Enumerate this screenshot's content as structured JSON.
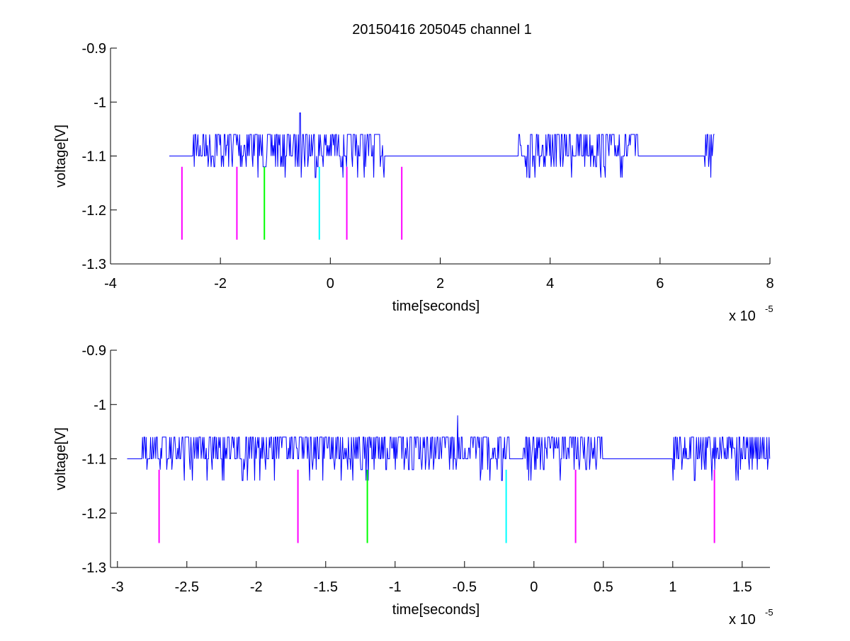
{
  "figure": {
    "title": "20150416 205045 channel 1",
    "background": "#ffffff"
  },
  "chart_data": [
    {
      "type": "line",
      "xlabel": "time[seconds]",
      "ylabel": "voltage[V]",
      "x_multiplier": "x 10",
      "x_multiplier_exp": "-5",
      "xlim": [
        -4,
        8
      ],
      "ylim": [
        -1.3,
        -0.9
      ],
      "ydir": "reverse",
      "xticks": [
        -4,
        -2,
        0,
        2,
        4,
        6,
        8
      ],
      "xtick_labels": [
        "-4",
        "-2",
        "0",
        "2",
        "4",
        "6",
        "8"
      ],
      "yticks": [
        -1.3,
        -1.2,
        -1.1,
        -1.0,
        -0.9
      ],
      "ytick_labels": [
        "-1.3",
        "-1.2",
        "-1.1",
        "-1",
        "-0.9"
      ],
      "grid": false,
      "series": [
        {
          "color": "#0000ff",
          "style": "noisy-trace",
          "x_range": [
            -2.93,
            7.0
          ],
          "baseline": -1.1,
          "levels": [
            -1.06,
            -1.08,
            -1.1,
            -1.12,
            -1.14
          ],
          "spike": {
            "x": -0.55,
            "y": -1.02
          },
          "quiet_intervals": [
            [
              -2.93,
              -2.5
            ],
            [
              1.0,
              3.4
            ],
            [
              5.6,
              6.8
            ]
          ]
        }
      ],
      "markers": [
        {
          "x": -2.7,
          "y_top": -1.12,
          "y_bottom": -1.255,
          "color": "#ff00ff"
        },
        {
          "x": -1.7,
          "y_top": -1.12,
          "y_bottom": -1.255,
          "color": "#ff00ff"
        },
        {
          "x": -1.2,
          "y_top": -1.12,
          "y_bottom": -1.255,
          "color": "#00ff00"
        },
        {
          "x": -0.2,
          "y_top": -1.12,
          "y_bottom": -1.255,
          "color": "#00ffff"
        },
        {
          "x": 0.3,
          "y_top": -1.12,
          "y_bottom": -1.255,
          "color": "#ff00ff"
        },
        {
          "x": 1.3,
          "y_top": -1.12,
          "y_bottom": -1.255,
          "color": "#ff00ff"
        }
      ]
    },
    {
      "type": "line",
      "xlabel": "time[seconds]",
      "ylabel": "voltage[V]",
      "x_multiplier": "x 10",
      "x_multiplier_exp": "-5",
      "xlim": [
        -3.05,
        1.7
      ],
      "ylim": [
        -1.3,
        -0.9
      ],
      "ydir": "reverse",
      "xticks": [
        -3,
        -2.5,
        -2,
        -1.5,
        -1,
        -0.5,
        0,
        0.5,
        1,
        1.5
      ],
      "xtick_labels": [
        "-3",
        "-2.5",
        "-2",
        "-1.5",
        "-1",
        "-0.5",
        "0",
        "0.5",
        "1",
        "1.5"
      ],
      "yticks": [
        -1.3,
        -1.2,
        -1.1,
        -1.0,
        -0.9
      ],
      "ytick_labels": [
        "-1.3",
        "-1.2",
        "-1.1",
        "-1",
        "-0.9"
      ],
      "grid": false,
      "series": [
        {
          "color": "#0000ff",
          "style": "noisy-trace",
          "x_range": [
            -2.93,
            1.7
          ],
          "baseline": -1.1,
          "levels": [
            -1.06,
            -1.08,
            -1.1,
            -1.12,
            -1.14
          ],
          "spike": {
            "x": -0.55,
            "y": -1.02
          },
          "quiet_intervals": [
            [
              -2.93,
              -2.82
            ],
            [
              -0.18,
              -0.08
            ],
            [
              0.5,
              1.0
            ]
          ]
        }
      ],
      "markers": [
        {
          "x": -2.7,
          "y_top": -1.12,
          "y_bottom": -1.255,
          "color": "#ff00ff"
        },
        {
          "x": -1.7,
          "y_top": -1.12,
          "y_bottom": -1.255,
          "color": "#ff00ff"
        },
        {
          "x": -1.2,
          "y_top": -1.12,
          "y_bottom": -1.255,
          "color": "#00ff00"
        },
        {
          "x": -0.2,
          "y_top": -1.12,
          "y_bottom": -1.255,
          "color": "#00ffff"
        },
        {
          "x": 0.3,
          "y_top": -1.12,
          "y_bottom": -1.255,
          "color": "#ff00ff"
        },
        {
          "x": 1.3,
          "y_top": -1.12,
          "y_bottom": -1.255,
          "color": "#ff00ff"
        }
      ]
    }
  ]
}
